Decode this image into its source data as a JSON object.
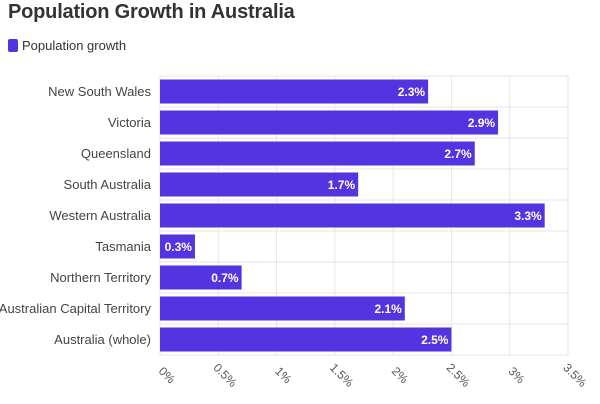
{
  "chart_data": {
    "type": "bar",
    "orientation": "horizontal",
    "title": "Population Growth in Australia",
    "legend": [
      {
        "name": "Population growth",
        "color": "#5433e0"
      }
    ],
    "categories": [
      "New South Wales",
      "Victoria",
      "Queensland",
      "South Australia",
      "Western Australia",
      "Tasmania",
      "Northern Territory",
      "Australian Capital Territory",
      "Australia (whole)"
    ],
    "series": [
      {
        "name": "Population growth",
        "color": "#5433e0",
        "values": [
          2.3,
          2.9,
          2.7,
          1.7,
          3.3,
          0.3,
          0.7,
          2.1,
          2.5
        ]
      }
    ],
    "value_labels": [
      "2.3%",
      "2.9%",
      "2.7%",
      "1.7%",
      "3.3%",
      "0.3%",
      "0.7%",
      "2.1%",
      "2.5%"
    ],
    "xlim": [
      0,
      3.5
    ],
    "xticks": [
      0,
      0.5,
      1,
      1.5,
      2,
      2.5,
      3,
      3.5
    ],
    "xtick_labels": [
      "0%",
      "0.5%",
      "1%",
      "1.5%",
      "2%",
      "2.5%",
      "3%",
      "3.5%"
    ],
    "grid": true,
    "legend_position": "top-left"
  }
}
